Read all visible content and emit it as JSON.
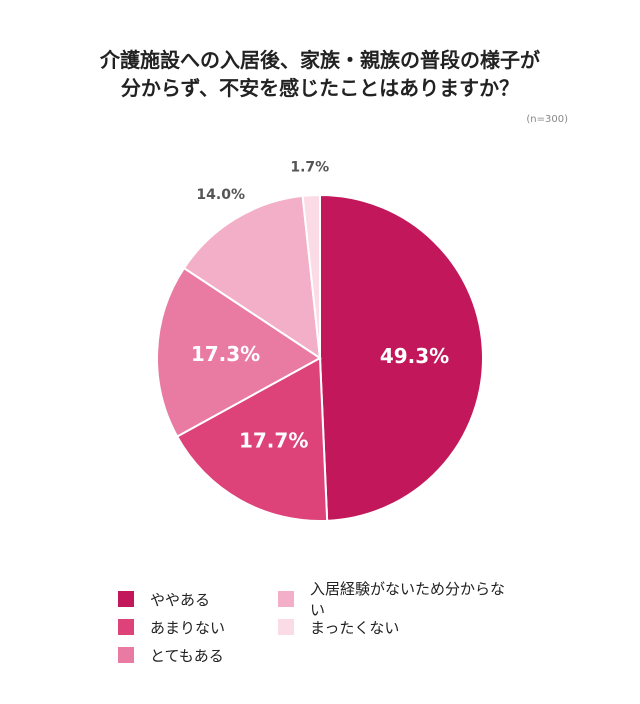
{
  "title_lines": [
    "介護施設への入居後、家族・親族の普段の様子が",
    "分からず、不安を感じたことはありますか？"
  ],
  "sample_note": "(n=300)",
  "chart_data": {
    "type": "pie",
    "title": "介護施設への入居後、家族・親族の普段の様子が分からず、不安を感じたことはありますか？",
    "slices": [
      {
        "label": "ややある",
        "value": 49.3,
        "display": "49.3%",
        "color": "#c2185b",
        "label_inside": true
      },
      {
        "label": "あまりない",
        "value": 17.7,
        "display": "17.7%",
        "color": "#dd4279",
        "label_inside": true
      },
      {
        "label": "とてもある",
        "value": 17.3,
        "display": "17.3%",
        "color": "#e97ba3",
        "label_inside": true
      },
      {
        "label": "入居経験がないため分からない",
        "value": 14.0,
        "display": "14.0%",
        "color": "#f2afc7",
        "label_inside": false
      },
      {
        "label": "まったくない",
        "value": 1.7,
        "display": "1.7%",
        "color": "#fadbe6",
        "label_inside": false
      }
    ],
    "start": "12 o'clock",
    "direction": "clockwise",
    "legend_position": "bottom"
  },
  "legend_order": [
    0,
    1,
    2,
    3,
    4
  ]
}
